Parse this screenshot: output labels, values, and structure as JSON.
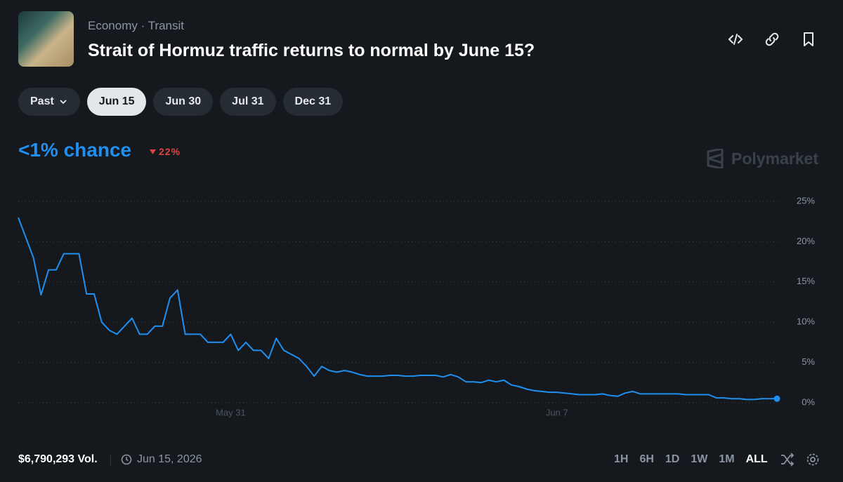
{
  "header": {
    "category": "Economy",
    "subcategory": "Transit",
    "title": "Strait of Hormuz traffic returns to normal by June 15?"
  },
  "date_tabs": {
    "items": [
      "Past",
      "Jun 15",
      "Jun 30",
      "Jul 31",
      "Dec 31"
    ],
    "selected": "Jun 15"
  },
  "odds": {
    "chance": "<1% chance",
    "change": "22%",
    "brand": "Polymarket"
  },
  "chart_data": {
    "type": "line",
    "color": "#1f8ff0",
    "grid": true,
    "categories": [
      null,
      null,
      null,
      null,
      null,
      null,
      null,
      null,
      null,
      null,
      null,
      null,
      null,
      null,
      null,
      null,
      null,
      null,
      null,
      null,
      null,
      null,
      null,
      null,
      null,
      null,
      null,
      null,
      "May 31",
      null,
      null,
      null,
      null,
      null,
      null,
      null,
      null,
      null,
      null,
      null,
      null,
      null,
      null,
      null,
      null,
      null,
      null,
      null,
      null,
      null,
      null,
      null,
      null,
      null,
      null,
      null,
      null,
      null,
      null,
      null,
      null,
      null,
      null,
      null,
      null,
      null,
      null,
      null,
      null,
      null,
      null,
      "Jun 7",
      null,
      null,
      null,
      null,
      null,
      null,
      null,
      null,
      null,
      null,
      null,
      null,
      null,
      null,
      null,
      null,
      null,
      null,
      null,
      null,
      null,
      null,
      null,
      null,
      null,
      null,
      null,
      null,
      null
    ],
    "values": [
      23,
      20.5,
      18,
      13.4,
      16.5,
      16.5,
      18.5,
      18.5,
      18.5,
      13.5,
      13.5,
      10,
      9,
      8.5,
      9.5,
      10.5,
      8.5,
      8.5,
      9.5,
      9.5,
      13,
      14,
      8.5,
      8.5,
      8.5,
      7.5,
      7.5,
      7.5,
      8.5,
      6.5,
      7.5,
      6.5,
      6.5,
      5.5,
      8,
      6.5,
      6,
      5.5,
      4.5,
      3.3,
      4.5,
      4,
      3.8,
      4,
      3.8,
      3.5,
      3.3,
      3.3,
      3.3,
      3.4,
      3.4,
      3.3,
      3.3,
      3.4,
      3.4,
      3.4,
      3.2,
      3.5,
      3.2,
      2.6,
      2.6,
      2.5,
      2.8,
      2.6,
      2.8,
      2.2,
      2,
      1.7,
      1.5,
      1.4,
      1.3,
      1.3,
      1.2,
      1.1,
      1,
      1,
      1,
      1.1,
      0.9,
      0.8,
      1.2,
      1.4,
      1.1,
      1.1,
      1.1,
      1.1,
      1.1,
      1.1,
      1,
      1,
      1,
      1,
      0.6,
      0.6,
      0.5,
      0.5,
      0.4,
      0.4,
      0.5,
      0.5,
      0.5
    ],
    "ylim": [
      0,
      25
    ],
    "yticks": [
      {
        "value": 0,
        "label": "0%"
      },
      {
        "value": 5,
        "label": "5%"
      },
      {
        "value": 10,
        "label": "10%"
      },
      {
        "value": 15,
        "label": "15%"
      },
      {
        "value": 20,
        "label": "20%"
      },
      {
        "value": 25,
        "label": "25%"
      }
    ]
  },
  "footer": {
    "volume": "$6,790,293 Vol.",
    "end_date": "Jun 15, 2026",
    "ranges": [
      "1H",
      "6H",
      "1D",
      "1W",
      "1M",
      "ALL"
    ],
    "selected_range": "ALL"
  }
}
